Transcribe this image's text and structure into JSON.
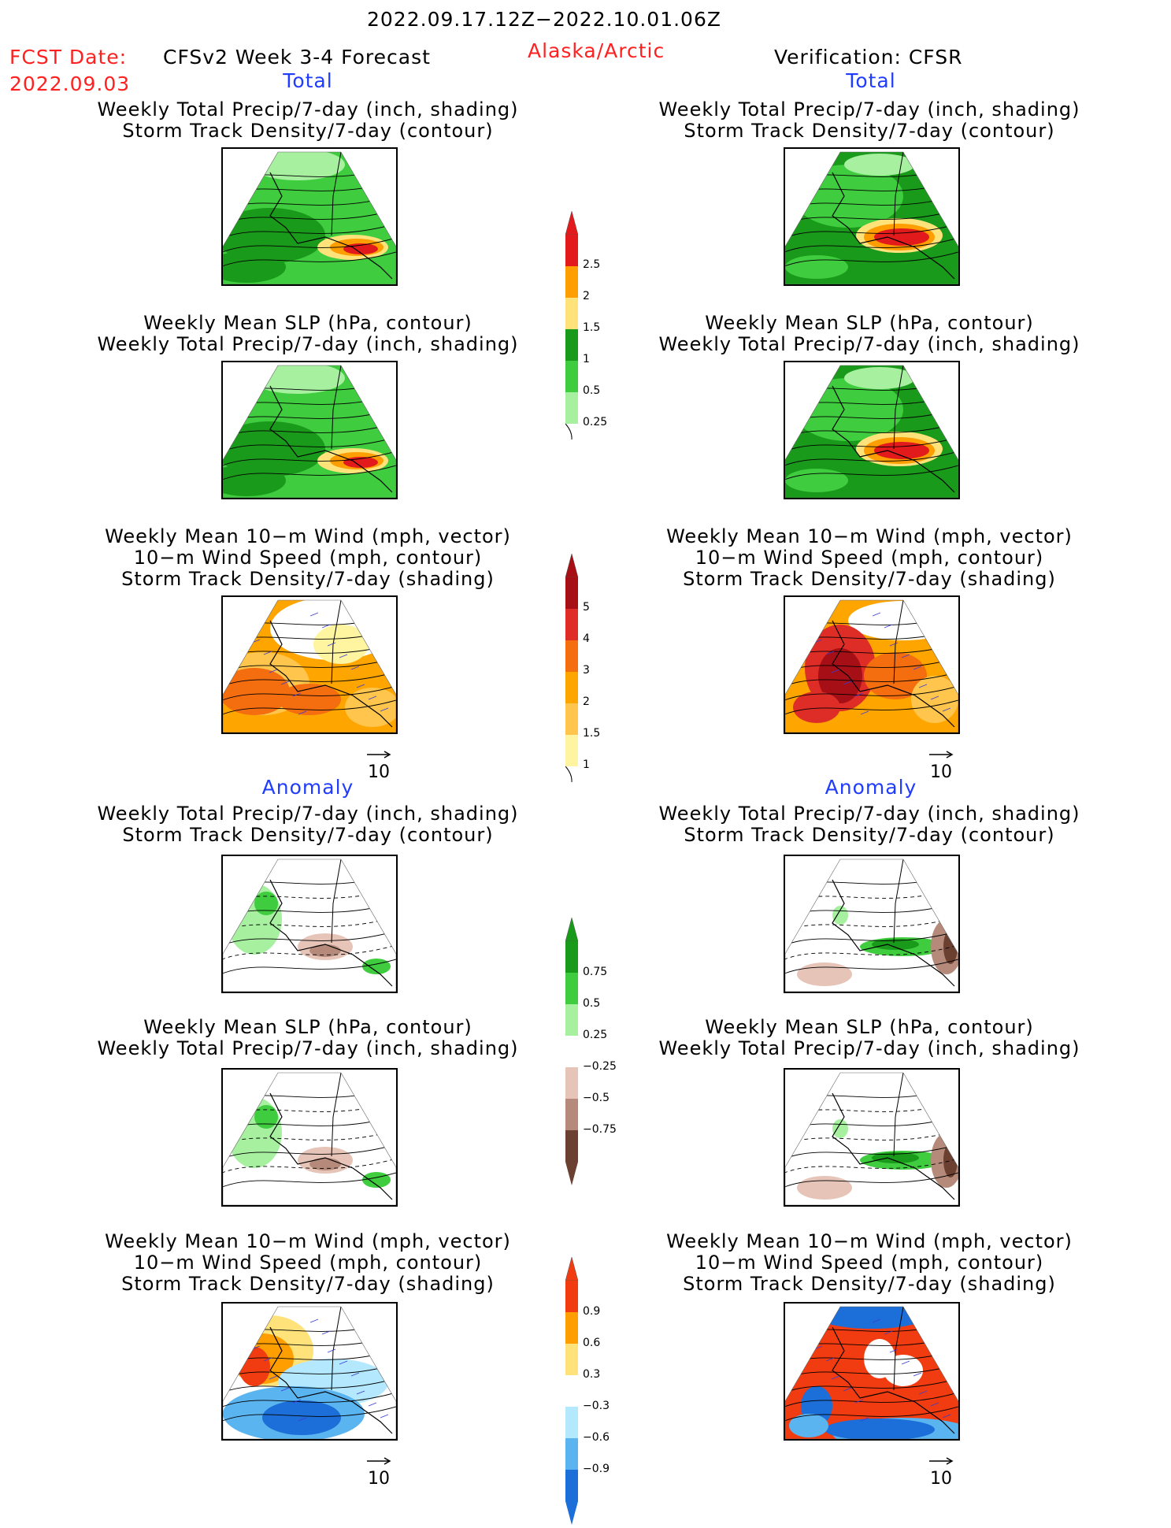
{
  "header": {
    "period": "2022.09.17.12Z−2022.10.01.06Z",
    "fcst_label": "FCST Date:",
    "fcst_date": "2022.09.03",
    "model": "CFSv2 Week 3-4 Forecast",
    "region": "Alaska/Arctic",
    "verification": "Verification: CFSR"
  },
  "sections": {
    "total": "Total",
    "anomaly": "Anomaly"
  },
  "titles": {
    "precip_track": [
      "Weekly Total Precip/7-day (inch, shading)",
      "Storm Track Density/7-day (contour)"
    ],
    "slp_precip": [
      "Weekly Mean SLP (hPa, contour)",
      "Weekly Total Precip/7-day (inch, shading)"
    ],
    "wind_track": [
      "Weekly Mean 10−m Wind (mph, vector)",
      "10−m Wind Speed (mph, contour)",
      "Storm Track Density/7-day (shading)"
    ]
  },
  "vector_scale": "10",
  "colorbars": {
    "precip_total": {
      "labels": [
        "2.5",
        "2",
        "1.5",
        "1",
        "0.5",
        "0.25"
      ],
      "colors": [
        "#e31a1c",
        "#ff9e00",
        "#ffe27a",
        "#1a9a1a",
        "#3fcc3f",
        "#a6f0a0"
      ]
    },
    "track_total": {
      "labels": [
        "5",
        "4",
        "3",
        "2",
        "1.5",
        "1"
      ],
      "colors": [
        "#a50f15",
        "#de2d26",
        "#f46d0e",
        "#ffa500",
        "#ffc54c",
        "#fff4a0"
      ]
    },
    "precip_anom": {
      "labels": [
        "0.75",
        "0.5",
        "0.25",
        "−0.25",
        "−0.5",
        "−0.75"
      ],
      "colors": [
        "#1a9a1a",
        "#3fcc3f",
        "#a6f0a0",
        "#ffffff",
        "#e6c4b8",
        "#b58a7a",
        "#6b4030"
      ]
    },
    "track_anom": {
      "labels": [
        "0.9",
        "0.6",
        "0.3",
        "−0.3",
        "−0.6",
        "−0.9"
      ],
      "colors": [
        "#f03c10",
        "#ff9e00",
        "#ffe27a",
        "#ffffff",
        "#b3e8ff",
        "#5ab4f0",
        "#1c6fd8"
      ]
    }
  },
  "map_icons": [
    "alaska-map-icon"
  ]
}
